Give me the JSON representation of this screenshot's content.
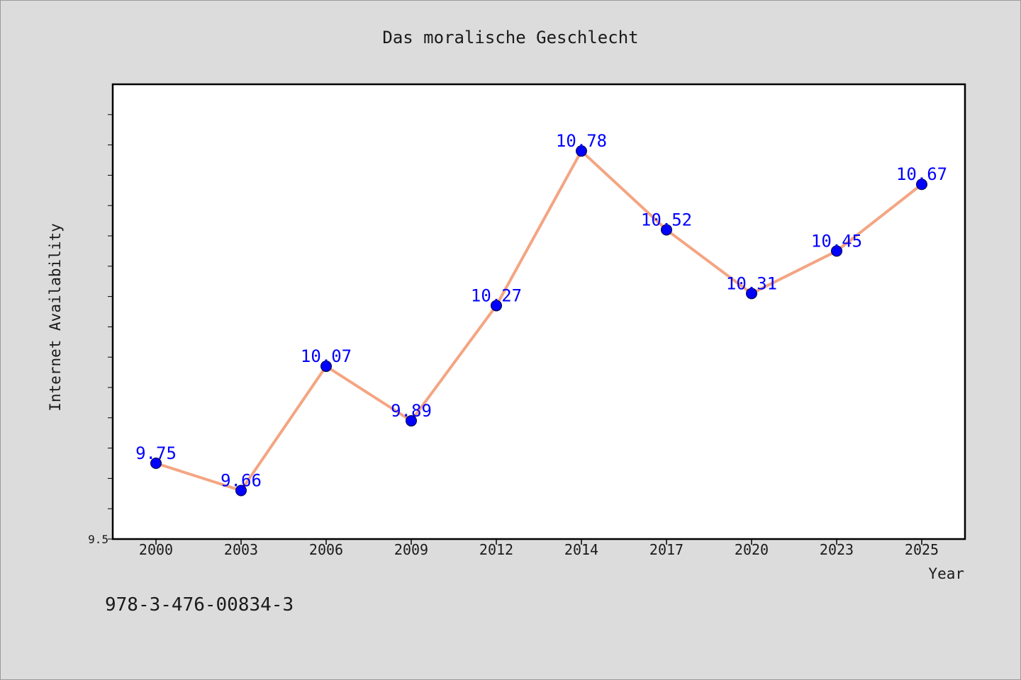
{
  "chart_data": {
    "type": "line",
    "title": "Das moralische Geschlecht",
    "xlabel": "Year",
    "ylabel": "Internet Availability",
    "categories": [
      "2000",
      "2003",
      "2006",
      "2009",
      "2012",
      "2014",
      "2017",
      "2020",
      "2023",
      "2025"
    ],
    "series": [
      {
        "values": [
          9.75,
          9.66,
          10.07,
          9.89,
          10.27,
          10.78,
          10.52,
          10.31,
          10.45,
          10.67
        ]
      }
    ],
    "data_labels": [
      "9.75",
      "9.66",
      "10.07",
      "9.89",
      "10.27",
      "10.78",
      "10.52",
      "10.31",
      "10.45",
      "10.67"
    ],
    "ylim": [
      9.5,
      11.0
    ],
    "y_tick_labels": [
      "9.5"
    ],
    "grid": false,
    "colors": {
      "line": "#f4a582",
      "marker": "#0000ff",
      "label": "#0000ff",
      "background": "#dcdcdc",
      "plot": "#ffffff"
    }
  },
  "footer": {
    "isbn": "978-3-476-00834-3"
  }
}
